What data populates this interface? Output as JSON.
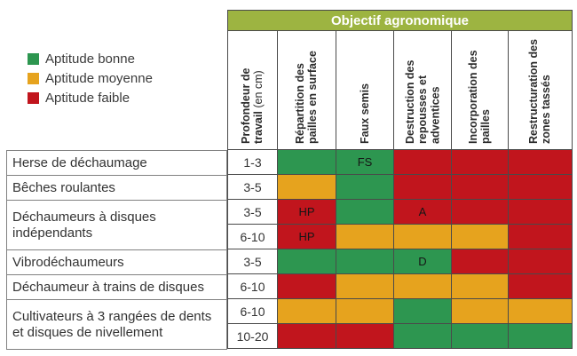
{
  "chart_data": {
    "type": "heatmap",
    "title": "Objectif agronomique",
    "legend": [
      {
        "key": "good",
        "label": "Aptitude bonne"
      },
      {
        "key": "medium",
        "label": "Aptitude moyenne"
      },
      {
        "key": "poor",
        "label": "Aptitude faible"
      }
    ],
    "columns": [
      {
        "label": "Profondeur de travail",
        "sublabel": "(en cm)"
      },
      {
        "label": "Répartition des pailles en surface"
      },
      {
        "label": "Faux semis"
      },
      {
        "label": "Destruction des repousses et adventices"
      },
      {
        "label": "Incorporation des pailles"
      },
      {
        "label": "Restructuration des zones tassés"
      }
    ],
    "tools": [
      {
        "name": "Herse de déchaumage",
        "span": 1
      },
      {
        "name": "Bêches roulantes",
        "span": 1
      },
      {
        "name": "Déchaumeurs à disques indépendants",
        "span": 2
      },
      {
        "name": "Vibrodéchaumeurs",
        "span": 1
      },
      {
        "name": "Déchaumeur à trains de disques",
        "span": 1
      },
      {
        "name": "Cultivateurs à 3 rangées de dents et disques de nivellement",
        "span": 2
      }
    ],
    "rows": [
      {
        "depth": "1-3",
        "cells": [
          {
            "apt": "good"
          },
          {
            "apt": "good",
            "note": "FS"
          },
          {
            "apt": "poor"
          },
          {
            "apt": "poor"
          },
          {
            "apt": "poor"
          }
        ]
      },
      {
        "depth": "3-5",
        "cells": [
          {
            "apt": "medium"
          },
          {
            "apt": "good"
          },
          {
            "apt": "poor"
          },
          {
            "apt": "poor"
          },
          {
            "apt": "poor"
          }
        ]
      },
      {
        "depth": "3-5",
        "cells": [
          {
            "apt": "poor",
            "note": "HP"
          },
          {
            "apt": "good"
          },
          {
            "apt": "poor",
            "note": "A"
          },
          {
            "apt": "poor"
          },
          {
            "apt": "poor"
          }
        ]
      },
      {
        "depth": "6-10",
        "cells": [
          {
            "apt": "poor",
            "note": "HP"
          },
          {
            "apt": "medium"
          },
          {
            "apt": "medium"
          },
          {
            "apt": "medium"
          },
          {
            "apt": "poor"
          }
        ]
      },
      {
        "depth": "3-5",
        "cells": [
          {
            "apt": "good"
          },
          {
            "apt": "good"
          },
          {
            "apt": "good",
            "note": "D"
          },
          {
            "apt": "poor"
          },
          {
            "apt": "poor"
          }
        ]
      },
      {
        "depth": "6-10",
        "cells": [
          {
            "apt": "poor"
          },
          {
            "apt": "medium"
          },
          {
            "apt": "medium"
          },
          {
            "apt": "medium"
          },
          {
            "apt": "poor"
          }
        ]
      },
      {
        "depth": "6-10",
        "cells": [
          {
            "apt": "medium"
          },
          {
            "apt": "medium"
          },
          {
            "apt": "good"
          },
          {
            "apt": "medium"
          },
          {
            "apt": "medium"
          }
        ]
      },
      {
        "depth": "10-20",
        "cells": [
          {
            "apt": "poor"
          },
          {
            "apt": "poor"
          },
          {
            "apt": "good"
          },
          {
            "apt": "good"
          },
          {
            "apt": "good"
          }
        ]
      }
    ],
    "colors": {
      "good": "#2d9650",
      "medium": "#e6a31e",
      "poor": "#c1151d",
      "band": "#9db441"
    }
  }
}
